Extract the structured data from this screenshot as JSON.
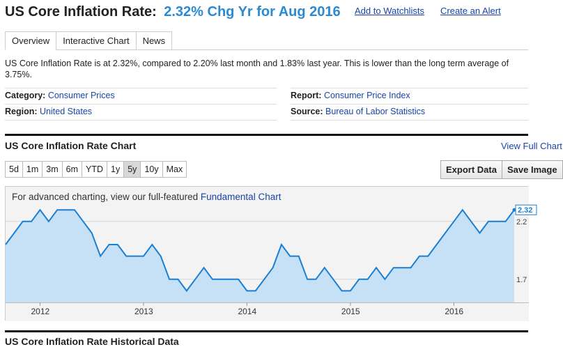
{
  "header": {
    "title": "US Core Inflation Rate:",
    "value": "2.32% Chg Yr for Aug 2016",
    "watchlist_link": "Add to Watchlists",
    "alert_link": "Create an Alert"
  },
  "tabs": [
    {
      "label": "Overview",
      "active": true
    },
    {
      "label": "Interactive Chart",
      "active": false
    },
    {
      "label": "News",
      "active": false
    }
  ],
  "summary": "US Core Inflation Rate is at 2.32%, compared to 2.20% last month and 1.83% last year. This is lower than the long term average of 3.75%.",
  "meta": {
    "category_label": "Category:",
    "category_value": "Consumer Prices",
    "region_label": "Region:",
    "region_value": "United States",
    "report_label": "Report:",
    "report_value": "Consumer Price Index",
    "source_label": "Source:",
    "source_value": "Bureau of Labor Statistics"
  },
  "chart_section": {
    "title": "US Core Inflation Rate Chart",
    "view_full": "View Full Chart",
    "ranges": [
      "5d",
      "1m",
      "3m",
      "6m",
      "YTD",
      "1y",
      "5y",
      "10y",
      "Max"
    ],
    "active_range": "5y",
    "export_label": "Export Data",
    "save_label": "Save Image",
    "note_prefix": "For advanced charting, view our full-featured ",
    "note_link": "Fundamental Chart"
  },
  "history": {
    "title": "US Core Inflation Rate Historical Data"
  },
  "colors": {
    "accent": "#2a8ad2",
    "link": "#1a44a8",
    "line": "#1b7fd1",
    "area": "#c6e0f5"
  },
  "chart_data": {
    "type": "area",
    "x": [
      "2011-09",
      "2011-10",
      "2011-11",
      "2011-12",
      "2012-01",
      "2012-02",
      "2012-03",
      "2012-04",
      "2012-05",
      "2012-06",
      "2012-07",
      "2012-08",
      "2012-09",
      "2012-10",
      "2012-11",
      "2012-12",
      "2013-01",
      "2013-02",
      "2013-03",
      "2013-04",
      "2013-05",
      "2013-06",
      "2013-07",
      "2013-08",
      "2013-09",
      "2013-10",
      "2013-11",
      "2013-12",
      "2014-01",
      "2014-02",
      "2014-03",
      "2014-04",
      "2014-05",
      "2014-06",
      "2014-07",
      "2014-08",
      "2014-09",
      "2014-10",
      "2014-11",
      "2014-12",
      "2015-01",
      "2015-02",
      "2015-03",
      "2015-04",
      "2015-05",
      "2015-06",
      "2015-07",
      "2015-08",
      "2015-09",
      "2015-10",
      "2015-11",
      "2015-12",
      "2016-01",
      "2016-02",
      "2016-03",
      "2016-04",
      "2016-05",
      "2016-06",
      "2016-07",
      "2016-08"
    ],
    "values": [
      2.0,
      2.1,
      2.2,
      2.2,
      2.3,
      2.2,
      2.3,
      2.3,
      2.3,
      2.2,
      2.1,
      1.9,
      2.0,
      2.0,
      1.9,
      1.9,
      1.9,
      2.0,
      1.9,
      1.7,
      1.7,
      1.6,
      1.7,
      1.8,
      1.7,
      1.7,
      1.7,
      1.7,
      1.6,
      1.6,
      1.7,
      1.8,
      2.0,
      1.9,
      1.9,
      1.7,
      1.7,
      1.8,
      1.7,
      1.6,
      1.6,
      1.7,
      1.7,
      1.8,
      1.7,
      1.8,
      1.8,
      1.8,
      1.9,
      1.9,
      2.0,
      2.1,
      2.2,
      2.3,
      2.2,
      2.1,
      2.2,
      2.2,
      2.2,
      2.3
    ],
    "x_tick_labels": [
      "2012",
      "2013",
      "2014",
      "2015",
      "2016"
    ],
    "y_tick_labels": [
      "2.2",
      "1.7"
    ],
    "last_value_label": "2.32",
    "ylim": [
      1.5,
      2.5
    ],
    "grid": true
  }
}
